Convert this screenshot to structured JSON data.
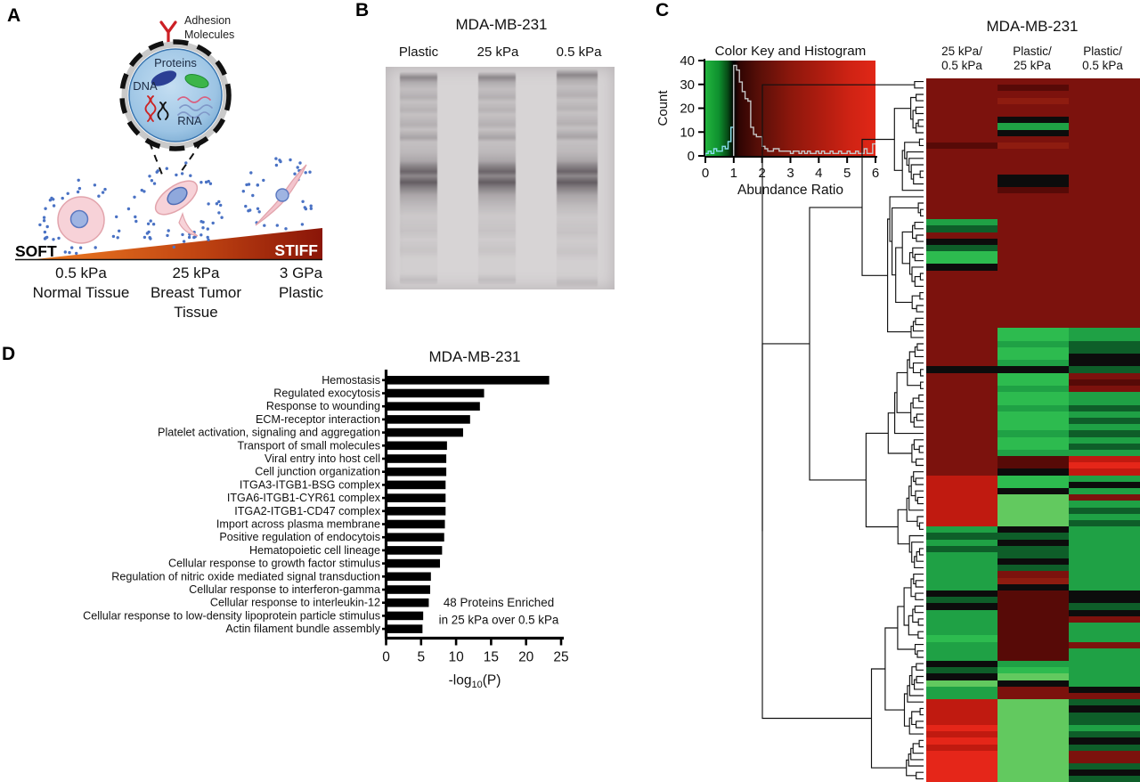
{
  "panels": {
    "a": "A",
    "b": "B",
    "c": "C",
    "d": "D"
  },
  "panel_a": {
    "adhesion_label": [
      "Adhesion",
      "Molecules"
    ],
    "proteins_label": "Proteins",
    "dna_label": "DNA",
    "rna_label": "RNA",
    "soft_label": "SOFT",
    "stiff_label": "STIFF",
    "conditions": [
      {
        "stiffness": "0.5 kPa",
        "tissue": [
          "Normal Tissue"
        ]
      },
      {
        "stiffness": "25 kPa",
        "tissue": [
          "Breast Tumor",
          "Tissue"
        ]
      },
      {
        "stiffness": "3 GPa",
        "tissue": [
          "Plastic"
        ]
      }
    ],
    "colors": {
      "gradient_left": "#ef7d22",
      "gradient_mid": "#c24612",
      "gradient_right": "#8a1508",
      "cell_fill": "#f7d2d8",
      "nucleus_fill": "#9fb4e2",
      "dot_color": "#4a72c4"
    }
  },
  "panel_b": {
    "title": "MDA-MB-231",
    "lanes": [
      "Plastic",
      "25 kPa",
      "0.5 kPa"
    ]
  },
  "panel_c": {
    "title": "MDA-MB-231",
    "column_headers": [
      [
        "25 kPa/",
        "0.5 kPa"
      ],
      [
        "Plastic/",
        "25 kPa"
      ],
      [
        "Plastic/",
        "0.5 kPa"
      ]
    ]
  },
  "chart_data": [
    {
      "id": "color_key_histogram",
      "type": "line",
      "title": "Color Key and Histogram",
      "xlabel": "Abundance Ratio",
      "ylabel": "Count",
      "xlim": [
        0,
        6
      ],
      "ylim": [
        0,
        40
      ],
      "xticks": [
        0,
        1,
        2,
        3,
        4,
        5,
        6
      ],
      "yticks": [
        0,
        10,
        20,
        30,
        40
      ],
      "bin_width": 0.1,
      "counts": [
        1,
        2,
        1,
        3,
        2,
        2,
        4,
        3,
        6,
        12,
        38,
        36,
        31,
        27,
        24,
        23,
        12,
        9,
        8,
        8,
        4,
        3,
        2,
        2,
        3,
        3,
        2,
        2,
        2,
        2,
        1,
        2,
        2,
        1,
        2,
        1,
        2,
        1,
        1,
        2,
        1,
        2,
        1,
        1,
        2,
        1,
        1,
        2,
        1,
        1,
        2,
        1,
        1,
        2,
        1,
        1,
        3,
        1,
        1,
        5
      ],
      "trace_color_below_1": "#8adeee",
      "trace_color_above_1": "#c6c6c6",
      "gradient_stops": [
        {
          "pos": 0,
          "color": "#22b53e"
        },
        {
          "pos": 8,
          "color": "#0e8f2e"
        },
        {
          "pos": 13,
          "color": "#074d17"
        },
        {
          "pos": 16.7,
          "color": "#000000"
        },
        {
          "pos": 20,
          "color": "#300503"
        },
        {
          "pos": 32,
          "color": "#5a0f08"
        },
        {
          "pos": 50,
          "color": "#8c170c"
        },
        {
          "pos": 70,
          "color": "#b21d10"
        },
        {
          "pos": 85,
          "color": "#cf2314"
        },
        {
          "pos": 100,
          "color": "#e12717"
        }
      ]
    },
    {
      "id": "heatmap",
      "type": "heatmap",
      "title": "MDA-MB-231",
      "columns": [
        "25 kPa/0.5 kPa",
        "Plastic/25 kPa",
        "Plastic/0.5 kPa"
      ],
      "palette": {
        "DR": "#7c120d",
        "D2": "#8e1c10",
        "MR": "#570a07",
        "R": "#c01a10",
        "BR": "#e52619",
        "K": "#0c0c0c",
        "DG": "#0e5e29",
        "G": "#1fa145",
        "BG": "#2dbb4f",
        "LG": "#62c95f"
      },
      "rows": [
        "DR|DR|DR",
        "DR|MR|DR",
        "DR|DR|DR",
        "DR|D2|DR",
        "DR|DR|DR",
        "DR|DR|DR",
        "DR|K|DR",
        "DR|G|DR",
        "DR|K|DR",
        "DR|DR|DR",
        "MR|D2|DR",
        "DR|DR|DR",
        "DR|DR|DR",
        "DR|DR|DR",
        "DR|DR|DR",
        "DR|K|DR",
        "DR|K|DR",
        "DR|MR|DR",
        "DR|DR|DR",
        "DR|DR|DR",
        "DR|DR|DR",
        "DR|DR|DR",
        "G|DR|DR",
        "DG|DR|DR",
        "DR|DR|DR",
        "K|DR|DR",
        "DG|DR|DR",
        "BG|DR|DR",
        "BG|DR|DR",
        "K|DR|DR",
        "DR|DR|DR",
        "DR|DR|DR",
        "DR|DR|DR",
        "DR|DR|DR",
        "DR|DR|DR",
        "DR|DR|DR",
        "DR|DR|DR",
        "DR|DR|DR",
        "DR|DR|DR",
        "DR|BG|G",
        "DR|BG|G",
        "DR|G|DG",
        "DR|BG|DG",
        "DR|BG|K",
        "DR|G|K",
        "K|K|DG",
        "DR|BG|DR",
        "DR|BG|MR",
        "DR|G|DR",
        "DR|BG|G",
        "DR|BG|G",
        "DR|G|DG",
        "DR|BG|G",
        "DR|BG|DG",
        "DR|BG|G",
        "DR|G|DG",
        "DR|BG|G",
        "DR|BG|DG",
        "DR|G|G",
        "DR|MR|R",
        "DR|MR|BR",
        "DR|K|R",
        "R|BG|G",
        "R|BG|K",
        "R|K|G",
        "R|LG|DR",
        "R|LG|G",
        "R|LG|DG",
        "R|LG|G",
        "R|LG|DG",
        "G|K|G",
        "DG|DG|G",
        "G|K|G",
        "DG|DG|G",
        "G|DG|G",
        "G|K|G",
        "G|DG|G",
        "G|DR|G",
        "G|D2|G",
        "G|K|G",
        "K|MR|K",
        "DG|MR|K",
        "K|MR|DG",
        "G|MR|K",
        "G|MR|DR",
        "G|MR|G",
        "G|MR|G",
        "BG|MR|G",
        "G|MR|DR",
        "G|MR|G",
        "G|MR|G",
        "K|G|G",
        "DG|BG|G",
        "K|LG|G",
        "LG|K|G",
        "G|DR|K",
        "G|DR|DR",
        "R|LG|DG",
        "R|LG|K",
        "R|LG|DG",
        "R|LG|DG",
        "BR|LG|G",
        "R|LG|DG",
        "BR|LG|K",
        "R|LG|DG",
        "BR|LG|DR",
        "BR|LG|DR",
        "BR|LG|DG",
        "BR|LG|K",
        "BR|LG|DG"
      ]
    },
    {
      "id": "go_enrichment",
      "type": "bar",
      "title": "MDA-MB-231",
      "orientation": "horizontal",
      "categories": [
        "Hemostasis",
        "Regulated exocytosis",
        "Response to wounding",
        "ECM-receptor interaction",
        "Platelet activation, signaling and aggregation",
        "Transport of small molecules",
        "Viral entry into host cell",
        "Cell junction organization",
        "ITGA3-ITGB1-BSG complex",
        "ITGA6-ITGB1-CYR61 complex",
        "ITGA2-ITGB1-CD47 complex",
        "Import across plasma membrane",
        "Positive regulation of endocytois",
        "Hematopoietic cell lineage",
        "Cellular response to growth factor stimulus",
        "Regulation of nitric oxide mediated signal transduction",
        "Cellular response to interferon-gamma",
        "Cellular response to interleukin-12",
        "Cellular response to low-density lipoprotein particle stimulus",
        "Actin filament bundle assembly"
      ],
      "values": [
        23.3,
        14.0,
        13.4,
        12.0,
        11.0,
        8.7,
        8.6,
        8.6,
        8.5,
        8.5,
        8.5,
        8.4,
        8.3,
        8.0,
        7.7,
        6.4,
        6.3,
        6.1,
        5.3,
        5.2
      ],
      "xlabel_parts": [
        "-log",
        "10",
        "(P)"
      ],
      "xlim": [
        0,
        25
      ],
      "xticks": [
        0,
        5,
        10,
        15,
        20,
        25
      ],
      "bar_color": "#000000",
      "annotation": [
        "48 Proteins Enriched",
        "in 25 kPa over 0.5 kPa"
      ]
    }
  ]
}
